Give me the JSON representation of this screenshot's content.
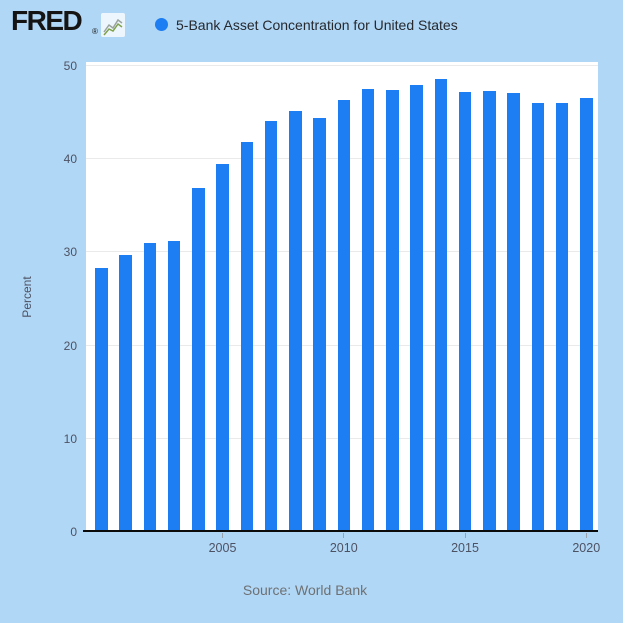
{
  "header": {
    "logo_text": "FRED",
    "registered_mark": "®",
    "series_title": "5-Bank Asset Concentration for United States"
  },
  "chart_data": {
    "type": "bar",
    "title": "5-Bank Asset Concentration for United States",
    "xlabel": "",
    "ylabel": "Percent",
    "ylim": [
      0,
      50.4
    ],
    "grid": true,
    "legend_position": "top-left",
    "categories": [
      2000,
      2001,
      2002,
      2003,
      2004,
      2005,
      2006,
      2007,
      2008,
      2009,
      2010,
      2011,
      2012,
      2013,
      2014,
      2015,
      2016,
      2017,
      2018,
      2019,
      2020
    ],
    "values": [
      28.3,
      29.7,
      31.0,
      31.2,
      36.9,
      39.5,
      41.8,
      44.1,
      45.2,
      44.4,
      46.3,
      47.5,
      47.4,
      47.9,
      48.6,
      47.2,
      47.3,
      47.1,
      46.0,
      46.0,
      46.5
    ],
    "y_ticks": [
      0,
      10,
      20,
      30,
      40,
      50
    ],
    "x_tick_years": [
      2005,
      2010,
      2015,
      2020
    ],
    "x_tick_labels": [
      "2005",
      "2010",
      "2015",
      "2020"
    ]
  },
  "footer": {
    "source": "Source: World Bank"
  },
  "colors": {
    "page_background": "#b1d7f6",
    "plot_background": "#ffffff",
    "series_blue": "#1d7df2",
    "gridline": "#eaeaea",
    "axis_line": "#0b0b0b",
    "tick_text": "#4d5263",
    "title_text": "#26292e",
    "source_text": "#6e7173",
    "tick_mark": "#9aa3ad",
    "logo_icon_gray": "#9aa49e",
    "logo_icon_green": "#7fa24a"
  }
}
